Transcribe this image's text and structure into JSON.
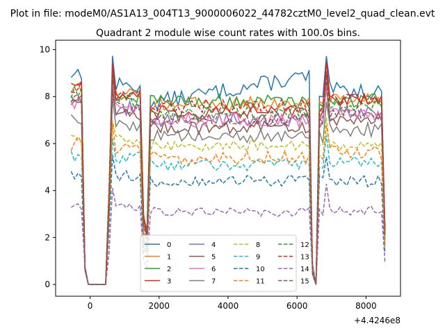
{
  "chart_data": {
    "type": "line",
    "suptitle": "Plot in file: modeM0/AS1A13_004T13_9000006022_44782cztM0_level2_quad_clean.evt",
    "title": "Quadrant 2 module wise count rates with 100.0s bins.",
    "xlabel": "",
    "ylabel": "",
    "x_offset_label": "+4.4246e8",
    "xlim": [
      -1000,
      9000
    ],
    "ylim": [
      -0.5,
      10.4
    ],
    "x_ticks": [
      0,
      2000,
      4000,
      6000,
      8000
    ],
    "x_tick_labels": [
      "0",
      "2000",
      "4000",
      "6000",
      "8000"
    ],
    "y_ticks": [
      0,
      2,
      4,
      6,
      8,
      10
    ],
    "y_tick_labels": [
      "0",
      "2",
      "4",
      "6",
      "8",
      "10"
    ],
    "x_start": -550,
    "x_step": 100,
    "n_points": 92,
    "legend_position": "lower center",
    "legend_ncol": 4,
    "series": [
      {
        "name": "0",
        "color": "#1f77b4",
        "dash": "solid",
        "base": 7.7,
        "hi": 9.2,
        "amp": 0.35,
        "trend": 1.2
      },
      {
        "name": "1",
        "color": "#ff7f0e",
        "dash": "solid",
        "base": 7.7,
        "hi": 8.5,
        "amp": 0.3,
        "trend": 0
      },
      {
        "name": "2",
        "color": "#2ca02c",
        "dash": "solid",
        "base": 7.8,
        "hi": 8.3,
        "amp": 0.3,
        "trend": 0
      },
      {
        "name": "3",
        "color": "#d62728",
        "dash": "solid",
        "base": 7.3,
        "hi": 8.8,
        "amp": 0.3,
        "trend": 0
      },
      {
        "name": "4",
        "color": "#9467bd",
        "dash": "solid",
        "base": 7.0,
        "hi": 8.0,
        "amp": 0.3,
        "trend": 0
      },
      {
        "name": "5",
        "color": "#8c564b",
        "dash": "solid",
        "base": 6.7,
        "hi": 7.8,
        "amp": 0.3,
        "trend": 0
      },
      {
        "name": "6",
        "color": "#e377c2",
        "dash": "solid",
        "base": 7.0,
        "hi": 7.9,
        "amp": 0.3,
        "trend": 0
      },
      {
        "name": "7",
        "color": "#7f7f7f",
        "dash": "solid",
        "base": 6.3,
        "hi": 7.3,
        "amp": 0.3,
        "trend": 0
      },
      {
        "name": "8",
        "color": "#bcbd22",
        "dash": "dashed",
        "base": 5.9,
        "hi": 6.4,
        "amp": 0.25,
        "trend": 0
      },
      {
        "name": "9",
        "color": "#17becf",
        "dash": "dashed",
        "base": 5.1,
        "hi": 5.7,
        "amp": 0.25,
        "trend": 0
      },
      {
        "name": "10",
        "color": "#1f77b4",
        "dash": "dashed",
        "base": 4.4,
        "hi": 4.8,
        "amp": 0.25,
        "trend": 0
      },
      {
        "name": "11",
        "color": "#ff7f0e",
        "dash": "dashed",
        "base": 5.4,
        "hi": 6.2,
        "amp": 0.3,
        "trend": 0
      },
      {
        "name": "12",
        "color": "#2ca02c",
        "dash": "dashed",
        "base": 7.3,
        "hi": 8.4,
        "amp": 0.3,
        "trend": 0
      },
      {
        "name": "13",
        "color": "#d62728",
        "dash": "dashed",
        "base": 7.6,
        "hi": 8.6,
        "amp": 0.3,
        "trend": 0
      },
      {
        "name": "14",
        "color": "#9467bd",
        "dash": "dashed",
        "base": 3.1,
        "hi": 3.6,
        "amp": 0.2,
        "trend": 0
      },
      {
        "name": "15",
        "color": "#8c564b",
        "dash": "dashed",
        "base": 7.0,
        "hi": 8.1,
        "amp": 0.3,
        "trend": 0
      }
    ]
  }
}
